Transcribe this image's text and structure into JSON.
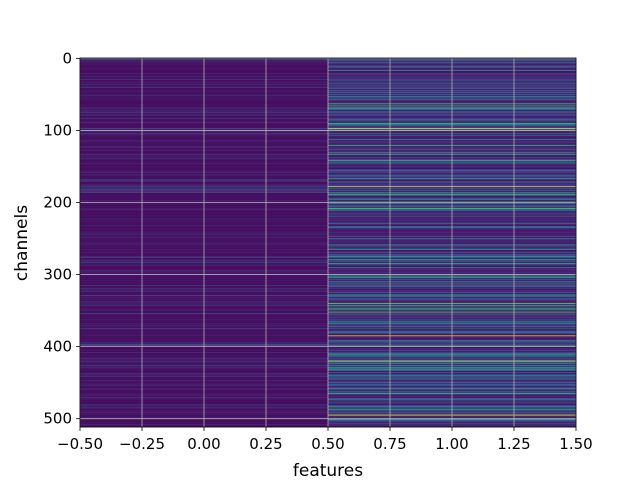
{
  "chart_data": {
    "type": "heatmap",
    "title": "",
    "xlabel": "features",
    "ylabel": "channels",
    "xlim": [
      -0.5,
      1.5
    ],
    "ylim": [
      511.5,
      -0.5
    ],
    "n_rows": 512,
    "columns": [
      0,
      1
    ],
    "x_ticks": [
      -0.5,
      -0.25,
      0.0,
      0.25,
      0.5,
      0.75,
      1.0,
      1.25,
      1.5
    ],
    "x_tick_labels": [
      "−0.50",
      "−0.25",
      "0.00",
      "0.25",
      "0.50",
      "0.75",
      "1.00",
      "1.25",
      "1.50"
    ],
    "y_ticks": [
      0,
      100,
      200,
      300,
      400,
      500
    ],
    "y_tick_labels": [
      "0",
      "100",
      "200",
      "300",
      "400",
      "500"
    ],
    "colormap": "viridis",
    "grid": true,
    "column_0_value_range": [
      0.0,
      0.25
    ],
    "column_1_value_range": [
      0.05,
      1.0
    ],
    "column_1_bright_rows": [
      97,
      178,
      340,
      352,
      385,
      420,
      495
    ]
  }
}
